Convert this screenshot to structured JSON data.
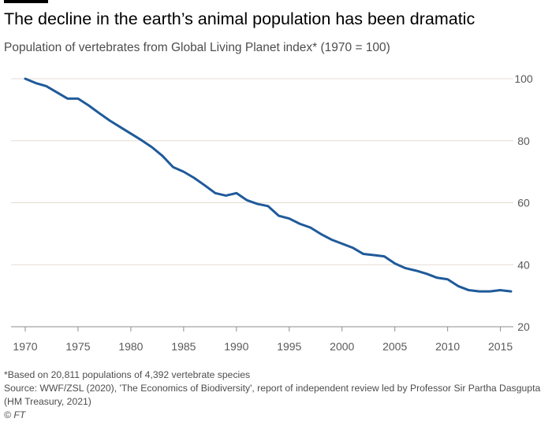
{
  "header": {
    "title": "The decline in the earth’s animal population has been dramatic",
    "subtitle": "Population of vertebrates from Global Living Planet index* (1970 = 100)"
  },
  "footer": {
    "note": "*Based on 20,811 populations of 4,392 vertebrate species",
    "source_line1": "Source: WWF/ZSL (2020), 'The Economics of Biodiversity', report of independent review led by Professor Sir Partha Dasgupta",
    "source_line2": "(HM Treasury, 2021)",
    "credit": "© FT"
  },
  "colors": {
    "line": "#1f5a9a",
    "gridline": "#e6dcd3",
    "baseline": "#8c8c8c",
    "tick_text": "#595959"
  },
  "chart_data": {
    "type": "line",
    "x": [
      1970,
      1971,
      1972,
      1973,
      1974,
      1975,
      1976,
      1977,
      1978,
      1979,
      1980,
      1981,
      1982,
      1983,
      1984,
      1985,
      1986,
      1987,
      1988,
      1989,
      1990,
      1991,
      1992,
      1993,
      1994,
      1995,
      1996,
      1997,
      1998,
      1999,
      2000,
      2001,
      2002,
      2003,
      2004,
      2005,
      2006,
      2007,
      2008,
      2009,
      2010,
      2011,
      2012,
      2013,
      2014,
      2015,
      2016
    ],
    "series": [
      {
        "values": [
          100,
          98.6,
          97.6,
          95.6,
          93.6,
          93.6,
          91.4,
          88.9,
          86.5,
          84.4,
          82.3,
          80.2,
          77.9,
          75.1,
          71.5,
          70,
          68,
          65.6,
          63.1,
          62.3,
          63.1,
          60.8,
          59.6,
          58.9,
          55.8,
          54.9,
          53.2,
          52,
          49.9,
          48.1,
          46.8,
          45.5,
          43.5,
          43.1,
          42.7,
          40.4,
          38.9,
          38.1,
          37.1,
          35.8,
          35.3,
          33.1,
          31.8,
          31.4,
          31.4,
          31.8,
          31.4
        ]
      }
    ],
    "xlim": [
      1970,
      2016
    ],
    "ylim": [
      20,
      100
    ],
    "xticks": [
      "1970",
      "1975",
      "1980",
      "1985",
      "1990",
      "1995",
      "2000",
      "2005",
      "2010",
      "2015"
    ],
    "xtick_values": [
      1970,
      1975,
      1980,
      1985,
      1990,
      1995,
      2000,
      2005,
      2010,
      2015
    ],
    "yticks": [
      "20",
      "40",
      "60",
      "80",
      "100"
    ],
    "ytick_values": [
      20,
      40,
      60,
      80,
      100
    ],
    "grid": true,
    "title": "The decline in the earth’s animal population has been dramatic",
    "subtitle": "Population of vertebrates from Global Living Planet index* (1970 = 100)",
    "xlabel": "",
    "ylabel": ""
  }
}
